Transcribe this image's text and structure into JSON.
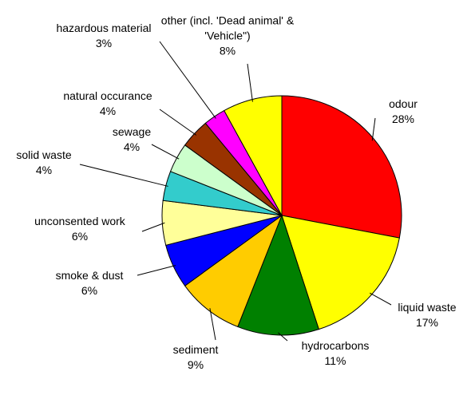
{
  "chart_data": {
    "type": "pie",
    "categories": [
      "odour",
      "liquid waste",
      "hydrocarbons",
      "sediment",
      "smoke & dust",
      "unconsented work",
      "solid waste",
      "sewage",
      "natural occurance",
      "hazardous material",
      "other (incl. 'Dead animal' & 'Vehicle\")"
    ],
    "values": [
      28,
      17,
      11,
      9,
      6,
      6,
      4,
      4,
      4,
      3,
      8
    ],
    "value_labels": [
      "28%",
      "17%",
      "11%",
      "9%",
      "6%",
      "6%",
      "4%",
      "4%",
      "4%",
      "3%",
      "8%"
    ],
    "colors": [
      "#ff0000",
      "#ffff00",
      "#008000",
      "#ffcc00",
      "#0000ff",
      "#ffff99",
      "#33cccc",
      "#ccffcc",
      "#993300",
      "#ff00ff",
      "#ffff00"
    ]
  }
}
